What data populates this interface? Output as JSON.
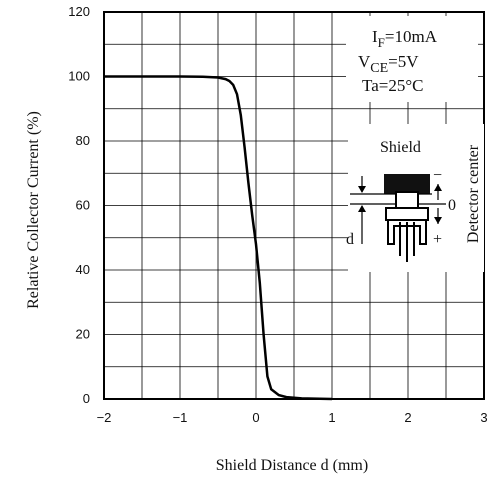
{
  "chart_data": {
    "type": "line",
    "title": "",
    "xlabel": "Shield Distance d (mm)",
    "ylabel": "Relative Collector Current (%)",
    "xlim": [
      -2,
      3
    ],
    "ylim": [
      0,
      120
    ],
    "x_ticks": [
      "−2",
      "−1",
      "0",
      "1",
      "2",
      "3"
    ],
    "y_ticks": [
      "0",
      "20",
      "40",
      "60",
      "80",
      "100",
      "120"
    ],
    "grid": true,
    "series": [
      {
        "points": [
          [
            -2,
            100
          ],
          [
            -1,
            100
          ],
          [
            -0.7,
            99.9
          ],
          [
            -0.5,
            99.7
          ],
          [
            -0.4,
            99.2
          ],
          [
            -0.35,
            98.6
          ],
          [
            -0.3,
            97.4
          ],
          [
            -0.25,
            94.5
          ],
          [
            -0.2,
            88
          ],
          [
            -0.15,
            78
          ],
          [
            -0.1,
            67
          ],
          [
            -0.05,
            57
          ],
          [
            0,
            48
          ],
          [
            0.05,
            36
          ],
          [
            0.1,
            20
          ],
          [
            0.15,
            7
          ],
          [
            0.2,
            3
          ],
          [
            0.3,
            1.2
          ],
          [
            0.4,
            0.6
          ],
          [
            0.6,
            0.2
          ],
          [
            1,
            0
          ]
        ]
      }
    ],
    "conditions": {
      "if_main": "I",
      "if_sub": "F",
      "if_rest": "=10mA",
      "vce_main": "V",
      "vce_sub": "CE",
      "vce_rest": "=5V",
      "ta": "Ta=25°C"
    },
    "inset": {
      "shield": "Shield",
      "minus": "−",
      "zero": "0",
      "plus": "+",
      "d": "d",
      "detector_center": "Detector center"
    }
  }
}
